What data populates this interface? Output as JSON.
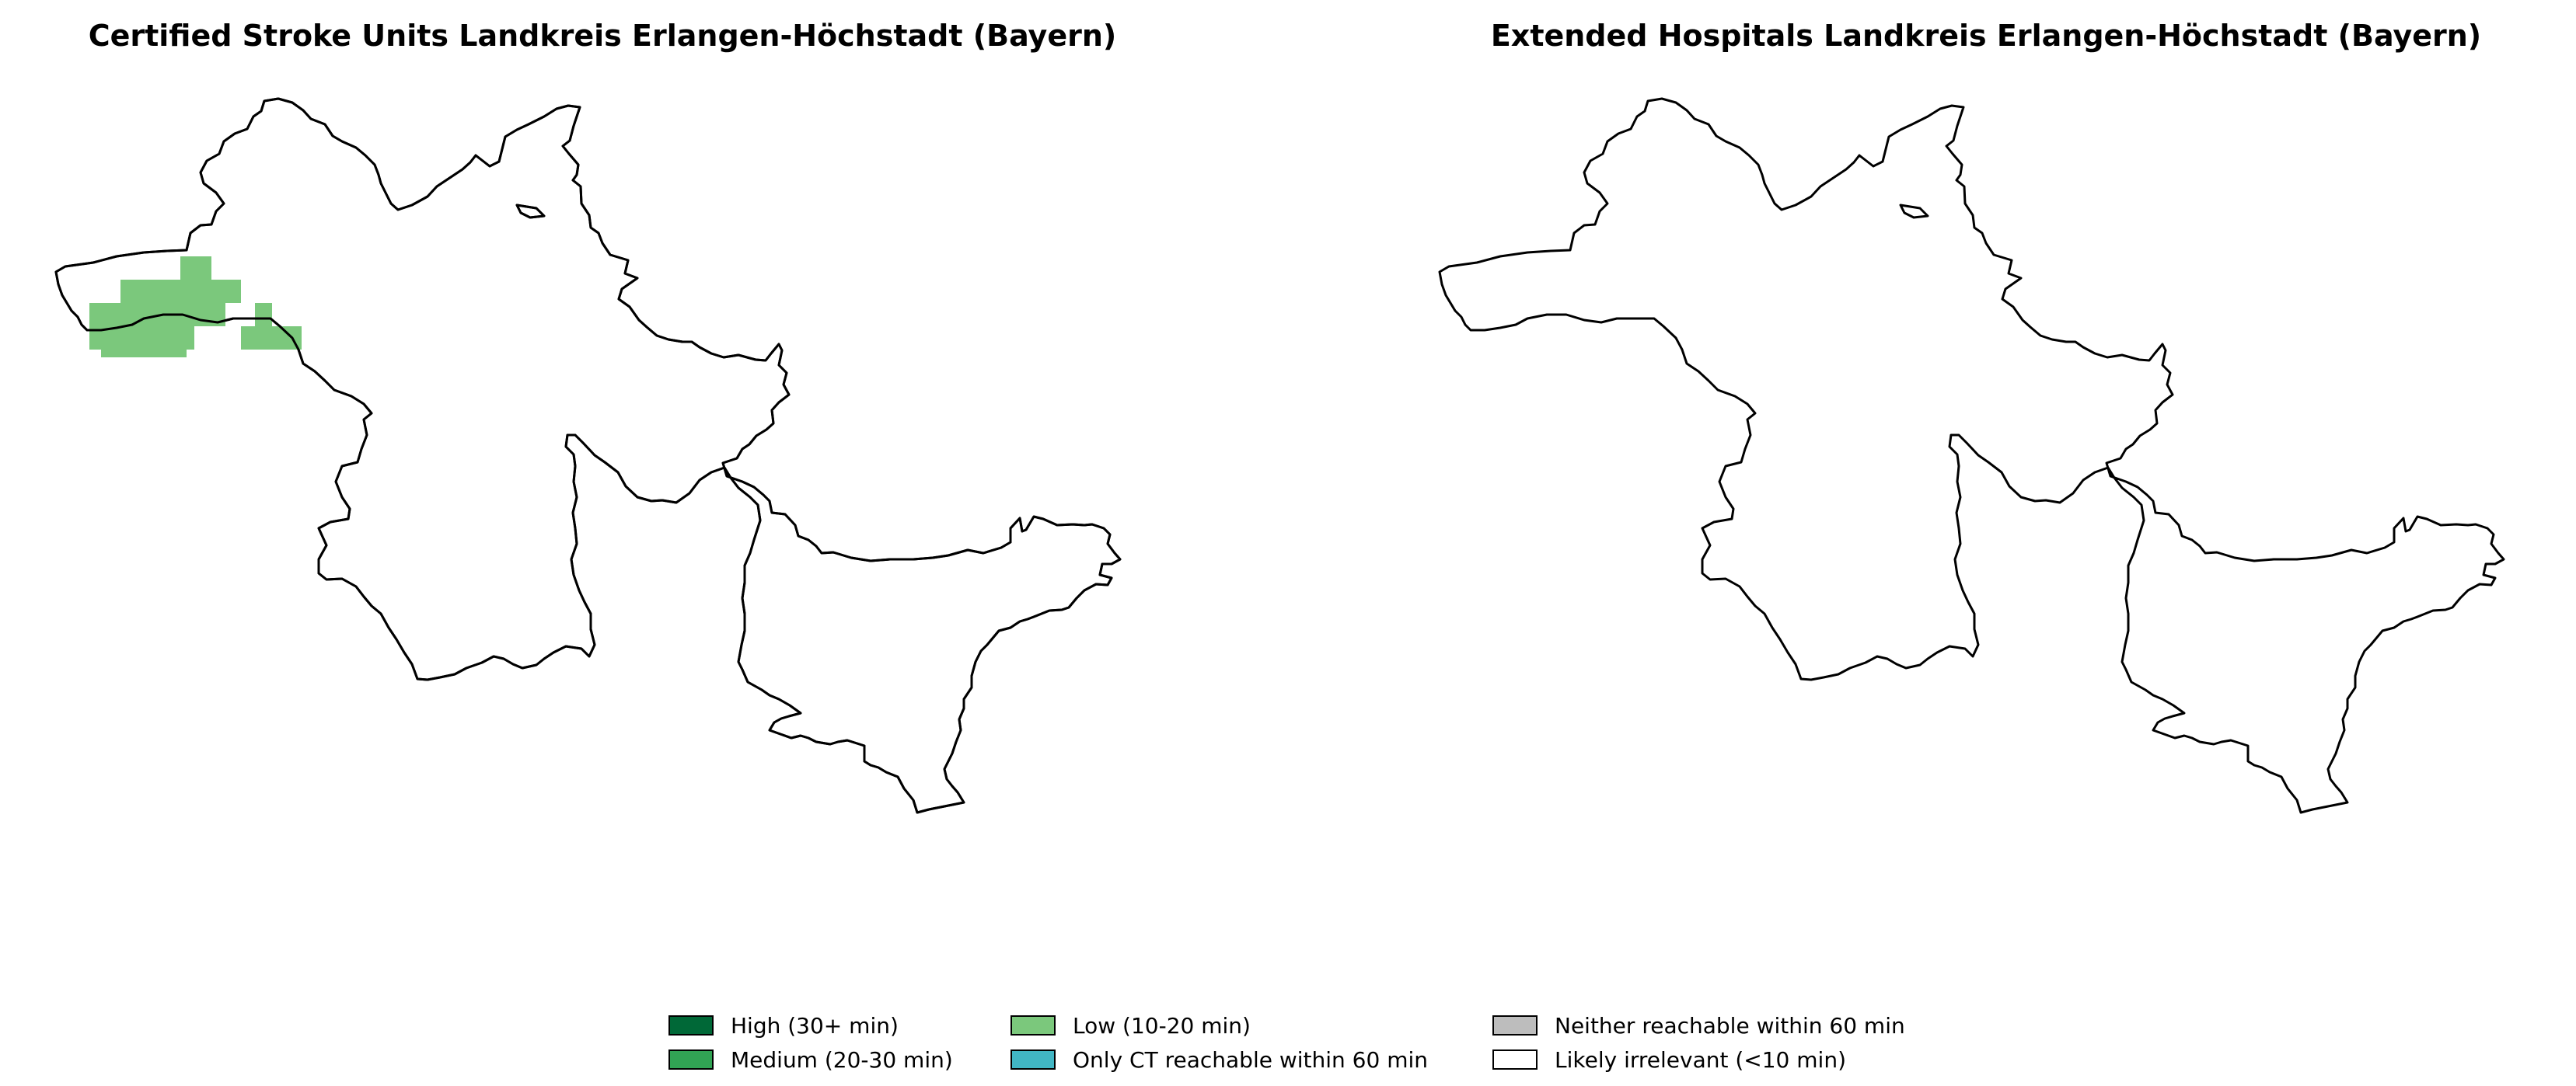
{
  "maps": [
    {
      "title": "Certified Stroke Units Landkreis Erlangen-Höchstadt (Bayern)",
      "highlighted_category": "low",
      "highlighted_color": "#7bc87c"
    },
    {
      "title": "Extended Hospitals Landkreis Erlangen-Höchstadt (Bayern)",
      "highlighted_category": null
    }
  ],
  "legend": [
    {
      "key": "high",
      "label": "High (30+ min)",
      "color": "#006837"
    },
    {
      "key": "medium",
      "label": "Medium (20-30 min)",
      "color": "#31a354"
    },
    {
      "key": "low",
      "label": "Low (10-20 min)",
      "color": "#7bc87c"
    },
    {
      "key": "ct-only",
      "label": "Only CT reachable within 60 min",
      "color": "#41b6c4"
    },
    {
      "key": "neither",
      "label": "Neither reachable within 60 min",
      "color": "#bdbdbd"
    },
    {
      "key": "irrelevant",
      "label": "Likely irrelevant (<10 min)",
      "color": "#ffffff"
    }
  ]
}
